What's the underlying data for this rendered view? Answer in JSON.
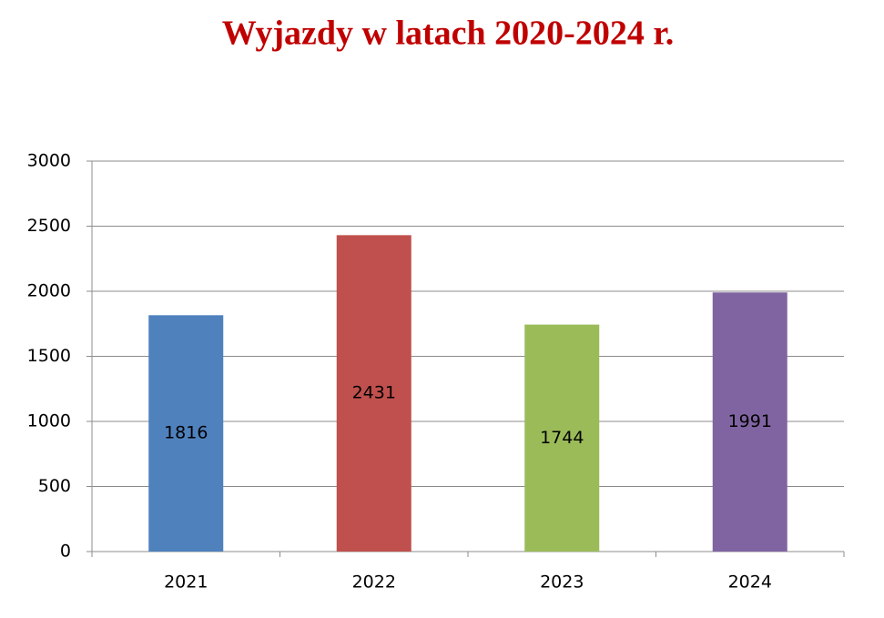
{
  "chart_data": {
    "type": "bar",
    "title": "Wyjazdy w latach 2020-2024 r.",
    "categories": [
      "2021",
      "2022",
      "2023",
      "2024"
    ],
    "values": [
      1816,
      2431,
      1744,
      1991
    ],
    "colors": [
      "#4f81bd",
      "#c0504d",
      "#9bbb59",
      "#8064a2"
    ],
    "ylim": [
      0,
      3000
    ],
    "yticks": [
      0,
      500,
      1000,
      1500,
      2000,
      2500,
      3000
    ],
    "grid": true
  }
}
